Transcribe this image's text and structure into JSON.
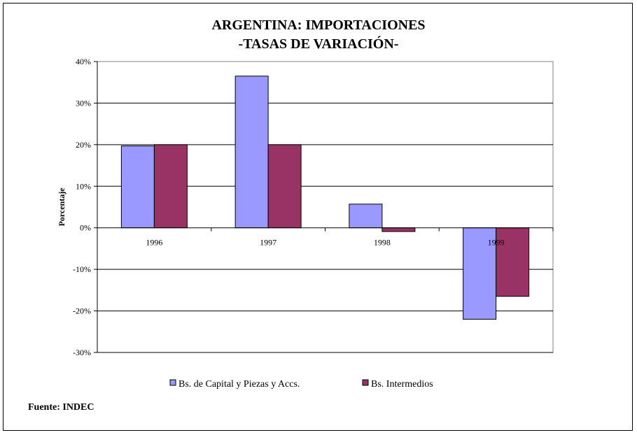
{
  "chart_data": {
    "type": "bar",
    "title_line1": "ARGENTINA: IMPORTACIONES",
    "title_line2": "-TASAS DE VARIACIÓN-",
    "ylabel": "Porcentaje",
    "xlabel": "",
    "categories": [
      "1996",
      "1997",
      "1998",
      "1999"
    ],
    "series": [
      {
        "name": "Bs. de Capital y Piezas y Accs.",
        "values": [
          19.7,
          36.5,
          5.7,
          -22.0
        ],
        "color": "#9999ff"
      },
      {
        "name": "Bs. Intermedios",
        "values": [
          20.0,
          20.0,
          -0.9,
          -16.5
        ],
        "color": "#993366"
      }
    ],
    "ylim": [
      -30,
      40
    ],
    "yticks": [
      40,
      30,
      20,
      10,
      0,
      -10,
      -20,
      -30
    ],
    "ytick_labels": [
      "40%",
      "30%",
      "20%",
      "10%",
      "0%",
      "-10%",
      "-20%",
      "-30%"
    ],
    "grid": true,
    "legend_position": "bottom",
    "source": "Fuente: INDEC"
  }
}
